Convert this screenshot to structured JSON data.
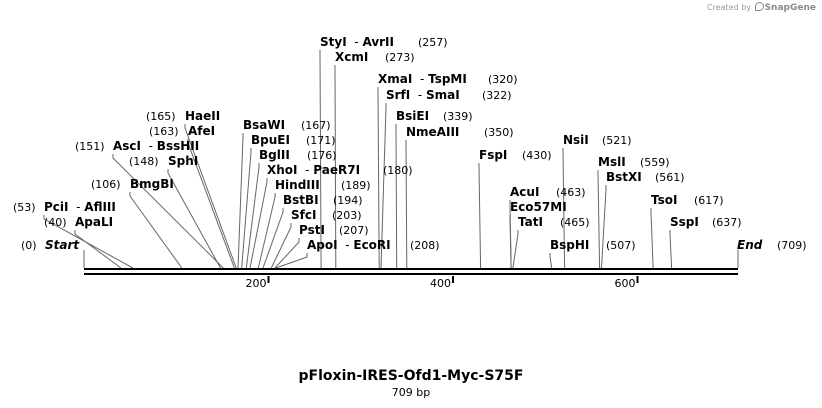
{
  "credit": {
    "prefix": "Created by",
    "brand": "SnapGene"
  },
  "title": "pFloxin-IRES-Ofd1-Myc-S75F",
  "subtitle": "709 bp",
  "sequence_length": 709,
  "axis_ticks": [
    200,
    400,
    600
  ],
  "start_label": "Start",
  "start_pos": "(0)",
  "end_label": "End",
  "end_pos": "(709)",
  "sites": [
    {
      "group": "styi-avrii",
      "site": 257,
      "names": [
        "StyI",
        "AvrII"
      ],
      "pos_text": "(257)"
    },
    {
      "group": "xcmi",
      "site": 273,
      "names": [
        "XcmI"
      ],
      "pos_text": "(273)"
    },
    {
      "group": "xmai-tspmi",
      "site": 320,
      "names": [
        "XmaI",
        "TspMI"
      ],
      "pos_text": "(320)"
    },
    {
      "group": "srfi-smai",
      "site": 322,
      "names": [
        "SrfI",
        "SmaI"
      ],
      "pos_text": "(322)"
    },
    {
      "group": "bsiei",
      "site": 339,
      "names": [
        "BsiEI"
      ],
      "pos_text": "(339)"
    },
    {
      "group": "nmeaiii",
      "site": 350,
      "names": [
        "NmeAIII"
      ],
      "pos_text": "(350)"
    },
    {
      "group": "haeii",
      "site": 165,
      "names": [
        "HaeII"
      ],
      "pos_text": "(165)"
    },
    {
      "group": "bsawi",
      "site": 167,
      "names": [
        "BsaWI"
      ],
      "pos_text": "(167)"
    },
    {
      "group": "afei",
      "site": 163,
      "names": [
        "AfeI"
      ],
      "pos_text": "(163)"
    },
    {
      "group": "bpuei",
      "site": 171,
      "names": [
        "BpuEI"
      ],
      "pos_text": "(171)"
    },
    {
      "group": "asci-bsshii",
      "site": 151,
      "names": [
        "AscI",
        "BssHII"
      ],
      "pos_text": "(151)"
    },
    {
      "group": "bglii",
      "site": 176,
      "names": [
        "BglII"
      ],
      "pos_text": "(176)"
    },
    {
      "group": "sphi",
      "site": 148,
      "names": [
        "SphI"
      ],
      "pos_text": "(148)"
    },
    {
      "group": "xhoi-paer7i",
      "site": 180,
      "names": [
        "XhoI",
        "PaeR7I"
      ],
      "pos_text": "(180)"
    },
    {
      "group": "bmgbi",
      "site": 106,
      "names": [
        "BmgBI"
      ],
      "pos_text": "(106)"
    },
    {
      "group": "hindiii",
      "site": 189,
      "names": [
        "HindIII"
      ],
      "pos_text": "(189)"
    },
    {
      "group": "bstbi",
      "site": 194,
      "names": [
        "BstBI"
      ],
      "pos_text": "(194)"
    },
    {
      "group": "pcii-afliii",
      "site": 53,
      "names": [
        "PciI",
        "AflIII"
      ],
      "pos_text": "(53)"
    },
    {
      "group": "sfci",
      "site": 203,
      "names": [
        "SfcI"
      ],
      "pos_text": "(203)"
    },
    {
      "group": "apali",
      "site": 40,
      "names": [
        "ApaLI"
      ],
      "pos_text": "(40)"
    },
    {
      "group": "psti",
      "site": 207,
      "names": [
        "PstI"
      ],
      "pos_text": "(207)"
    },
    {
      "group": "apoi-ecori",
      "site": 208,
      "names": [
        "ApoI",
        "EcoRI"
      ],
      "pos_text": "(208)"
    },
    {
      "group": "nsii",
      "site": 521,
      "names": [
        "NsiI"
      ],
      "pos_text": "(521)"
    },
    {
      "group": "fspi",
      "site": 430,
      "names": [
        "FspI"
      ],
      "pos_text": "(430)"
    },
    {
      "group": "msli",
      "site": 559,
      "names": [
        "MslI"
      ],
      "pos_text": "(559)"
    },
    {
      "group": "bstxi",
      "site": 561,
      "names": [
        "BstXI"
      ],
      "pos_text": "(561)"
    },
    {
      "group": "acui",
      "site": 463,
      "names": [
        "AcuI"
      ],
      "pos_text": "(463)"
    },
    {
      "group": "eco57mi",
      "site": 463,
      "names": [
        "Eco57MI"
      ],
      "pos_text": ""
    },
    {
      "group": "tsoi",
      "site": 617,
      "names": [
        "TsoI"
      ],
      "pos_text": "(617)"
    },
    {
      "group": "tati",
      "site": 465,
      "names": [
        "TatI"
      ],
      "pos_text": "(465)"
    },
    {
      "group": "sspi",
      "site": 637,
      "names": [
        "SspI"
      ],
      "pos_text": "(637)"
    },
    {
      "group": "bsphi",
      "site": 507,
      "names": [
        "BspHI"
      ],
      "pos_text": "(507)"
    }
  ],
  "colors": {
    "text": "#000000",
    "lead": "#666666",
    "backbone": "#000000"
  }
}
